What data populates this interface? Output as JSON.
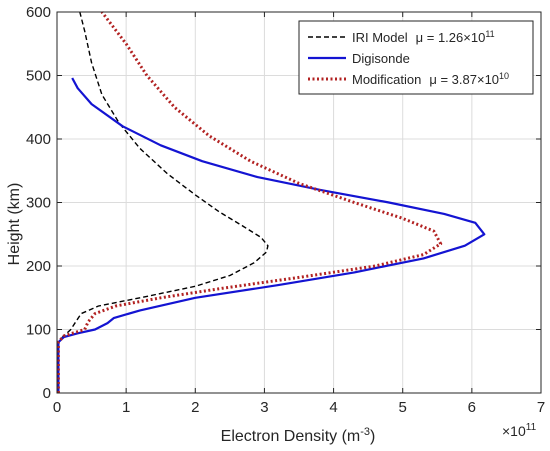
{
  "chart_data": {
    "type": "line",
    "xlabel": "Electron Density (m",
    "xlabel_sup": "-3",
    "xlabel_close": ")",
    "ylabel": "Height (km)",
    "x_exponent_base": "×10",
    "x_exponent_sup": "11",
    "xlim": [
      0,
      7
    ],
    "ylim": [
      0,
      600
    ],
    "x_unit_scale": 100000000000.0,
    "xticks": [
      0,
      1,
      2,
      3,
      4,
      5,
      6,
      7
    ],
    "yticks": [
      0,
      100,
      200,
      300,
      400,
      500,
      600
    ],
    "xtick_labels": [
      "0",
      "1",
      "2",
      "3",
      "4",
      "5",
      "6",
      "7"
    ],
    "ytick_labels": [
      "0",
      "100",
      "200",
      "300",
      "400",
      "500",
      "600"
    ],
    "grid": true,
    "legend_position": "top-right",
    "series": [
      {
        "name": "IRI Model",
        "legend_mu": "μ = 1.26×10",
        "legend_mu_sup": "11",
        "color": "#000000",
        "style": "dashed",
        "points": [
          [
            0.02,
            0
          ],
          [
            0.02,
            80
          ],
          [
            0.08,
            88
          ],
          [
            0.2,
            100
          ],
          [
            0.27,
            112
          ],
          [
            0.35,
            125
          ],
          [
            0.6,
            137
          ],
          [
            1.2,
            150
          ],
          [
            2.0,
            168
          ],
          [
            2.5,
            185
          ],
          [
            2.85,
            205
          ],
          [
            3.03,
            222
          ],
          [
            3.05,
            232
          ],
          [
            2.95,
            245
          ],
          [
            2.7,
            262
          ],
          [
            2.35,
            285
          ],
          [
            2.0,
            312
          ],
          [
            1.6,
            345
          ],
          [
            1.2,
            385
          ],
          [
            0.9,
            425
          ],
          [
            0.65,
            470
          ],
          [
            0.5,
            520
          ],
          [
            0.4,
            570
          ],
          [
            0.33,
            600
          ]
        ]
      },
      {
        "name": "Digisonde",
        "legend_mu": "",
        "legend_mu_sup": "",
        "color": "#1414d2",
        "style": "solid",
        "points": [
          [
            0.02,
            0
          ],
          [
            0.02,
            80
          ],
          [
            0.1,
            88
          ],
          [
            0.3,
            94
          ],
          [
            0.55,
            100
          ],
          [
            0.73,
            110
          ],
          [
            0.82,
            118
          ],
          [
            1.2,
            130
          ],
          [
            2.0,
            150
          ],
          [
            3.2,
            170
          ],
          [
            4.3,
            190
          ],
          [
            5.3,
            212
          ],
          [
            5.9,
            232
          ],
          [
            6.18,
            250
          ],
          [
            6.05,
            268
          ],
          [
            5.6,
            282
          ],
          [
            4.8,
            300
          ],
          [
            3.8,
            320
          ],
          [
            2.9,
            340
          ],
          [
            2.1,
            365
          ],
          [
            1.5,
            390
          ],
          [
            0.95,
            420
          ],
          [
            0.5,
            455
          ],
          [
            0.3,
            480
          ],
          [
            0.22,
            496
          ]
        ]
      },
      {
        "name": "Modification",
        "legend_mu": "μ = 3.87×10",
        "legend_mu_sup": "10",
        "color": "#b22222",
        "style": "dotted",
        "points": [
          [
            0.02,
            0
          ],
          [
            0.02,
            80
          ],
          [
            0.1,
            90
          ],
          [
            0.4,
            100
          ],
          [
            0.45,
            112
          ],
          [
            0.55,
            125
          ],
          [
            0.85,
            137
          ],
          [
            1.5,
            150
          ],
          [
            2.4,
            165
          ],
          [
            3.5,
            182
          ],
          [
            4.6,
            200
          ],
          [
            5.3,
            218
          ],
          [
            5.55,
            235
          ],
          [
            5.45,
            255
          ],
          [
            5.0,
            275
          ],
          [
            4.3,
            300
          ],
          [
            3.5,
            330
          ],
          [
            2.8,
            365
          ],
          [
            2.2,
            405
          ],
          [
            1.7,
            450
          ],
          [
            1.3,
            500
          ],
          [
            1.0,
            550
          ],
          [
            0.65,
            600
          ]
        ]
      }
    ]
  }
}
